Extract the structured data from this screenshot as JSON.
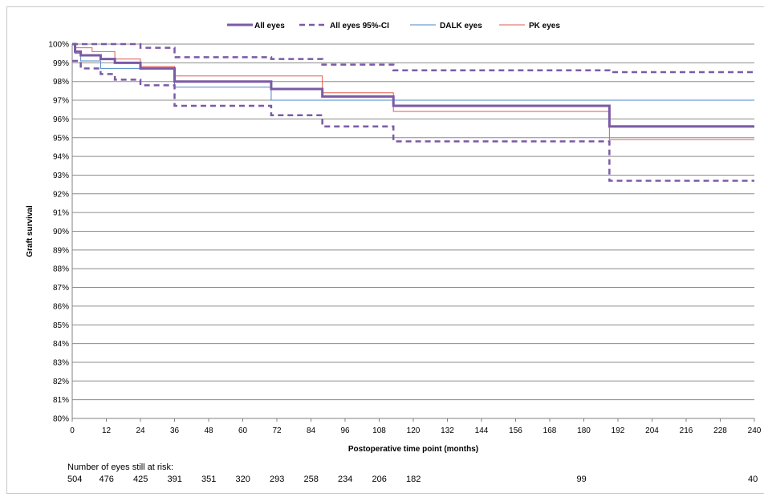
{
  "chart_data": {
    "type": "line",
    "title": "",
    "xlabel": "Postoperative time point (months)",
    "ylabel": "Graft survival",
    "xlim": [
      0,
      240
    ],
    "ylim": [
      80,
      100
    ],
    "x_ticks": [
      0,
      12,
      24,
      36,
      48,
      60,
      72,
      84,
      96,
      108,
      120,
      132,
      144,
      156,
      168,
      180,
      192,
      204,
      216,
      228,
      240
    ],
    "y_ticks": [
      80,
      81,
      82,
      83,
      84,
      85,
      86,
      87,
      88,
      89,
      90,
      91,
      92,
      93,
      94,
      95,
      96,
      97,
      98,
      99,
      100
    ],
    "y_tick_suffix": "%",
    "grid": "horizontal",
    "legend_position": "top",
    "step": true,
    "series": [
      {
        "name": "All eyes",
        "style": "solid-thick",
        "color": "#7b5aa6",
        "x": [
          0,
          1,
          3,
          10,
          15,
          24,
          36,
          70,
          88,
          113,
          189,
          240
        ],
        "y": [
          100,
          99.6,
          99.4,
          99.2,
          99.0,
          98.7,
          98.0,
          97.6,
          97.2,
          96.7,
          95.6,
          95.6
        ]
      },
      {
        "name": "All eyes 95%-CI",
        "style": "dashed",
        "color": "#7b5aa6",
        "x": [
          0,
          1,
          3,
          12,
          24,
          36,
          70,
          88,
          113,
          189,
          240
        ],
        "y": [
          100,
          100,
          100,
          100,
          99.8,
          99.3,
          99.2,
          98.9,
          98.6,
          98.5,
          98.5
        ]
      },
      {
        "name": "",
        "style": "dashed",
        "color": "#7b5aa6",
        "x": [
          0,
          1,
          3,
          10,
          15,
          24,
          36,
          70,
          88,
          113,
          189,
          240
        ],
        "y": [
          99.1,
          99.1,
          98.7,
          98.4,
          98.1,
          97.8,
          96.7,
          96.2,
          95.6,
          94.8,
          92.7,
          92.7
        ]
      },
      {
        "name": "DALK eyes",
        "style": "solid-thin",
        "color": "#4a86c8",
        "x": [
          0,
          1,
          3,
          10,
          24,
          36,
          70,
          113,
          240
        ],
        "y": [
          100,
          99.5,
          99.1,
          98.7,
          98.7,
          97.7,
          97.0,
          97.0,
          97.0
        ]
      },
      {
        "name": "PK eyes",
        "style": "solid-thin",
        "color": "#e05a50",
        "x": [
          0,
          1,
          7,
          15,
          24,
          36,
          70,
          88,
          113,
          189,
          240
        ],
        "y": [
          100,
          99.8,
          99.6,
          99.2,
          98.8,
          98.3,
          98.3,
          97.4,
          96.4,
          94.9,
          94.9
        ]
      }
    ],
    "risk_table": {
      "label": "Number  of eyes still at risk:",
      "entries": [
        {
          "month": 0,
          "n": "504"
        },
        {
          "month": 12,
          "n": "476"
        },
        {
          "month": 24,
          "n": "425"
        },
        {
          "month": 36,
          "n": "391"
        },
        {
          "month": 48,
          "n": "351"
        },
        {
          "month": 60,
          "n": "320"
        },
        {
          "month": 72,
          "n": "293"
        },
        {
          "month": 84,
          "n": "258"
        },
        {
          "month": 96,
          "n": "234"
        },
        {
          "month": 108,
          "n": "206"
        },
        {
          "month": 120,
          "n": "182"
        },
        {
          "month": 180,
          "n": "99"
        },
        {
          "month": 240,
          "n": "40"
        }
      ]
    }
  }
}
